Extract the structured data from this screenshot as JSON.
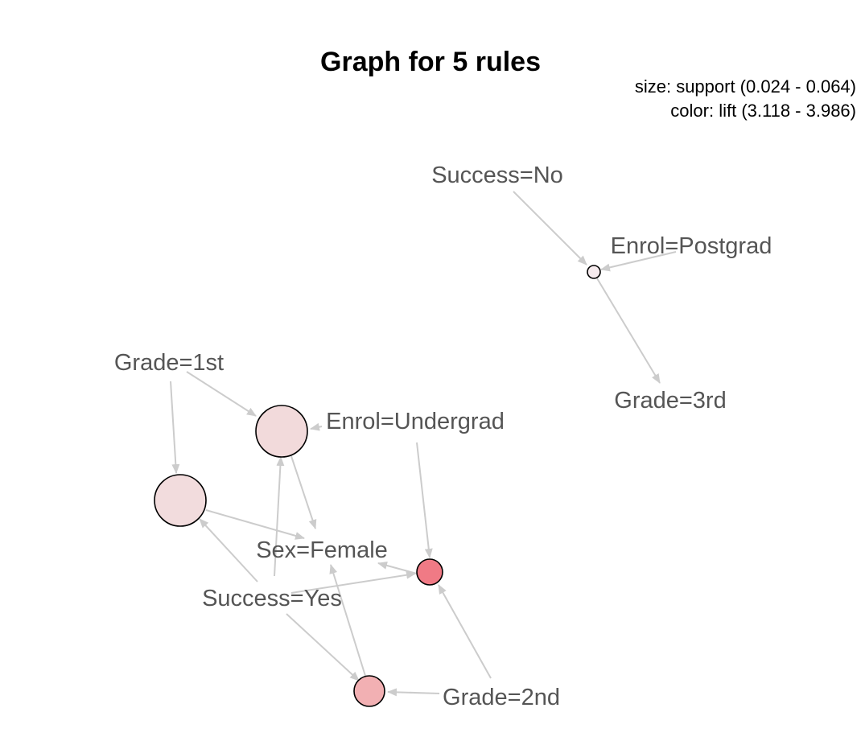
{
  "title": "Graph for 5 rules",
  "legend": {
    "size": "size: support (0.024 - 0.064)",
    "color": "color: lift (3.118 - 3.986)"
  },
  "items": {
    "success_no": "Success=No",
    "enrol_postgrad": "Enrol=Postgrad",
    "grade_1st": "Grade=1st",
    "grade_3rd": "Grade=3rd",
    "enrol_undergrad": "Enrol=Undergrad",
    "sex_female": "Sex=Female",
    "success_yes": "Success=Yes",
    "grade_2nd": "Grade=2nd"
  },
  "colors": {
    "edge": "#cccccc",
    "label": "#555555",
    "rule_low_lift": "#f2dadb",
    "rule_mid_lift": "#f2b0b3",
    "rule_high_lift": "#f07a85"
  }
}
